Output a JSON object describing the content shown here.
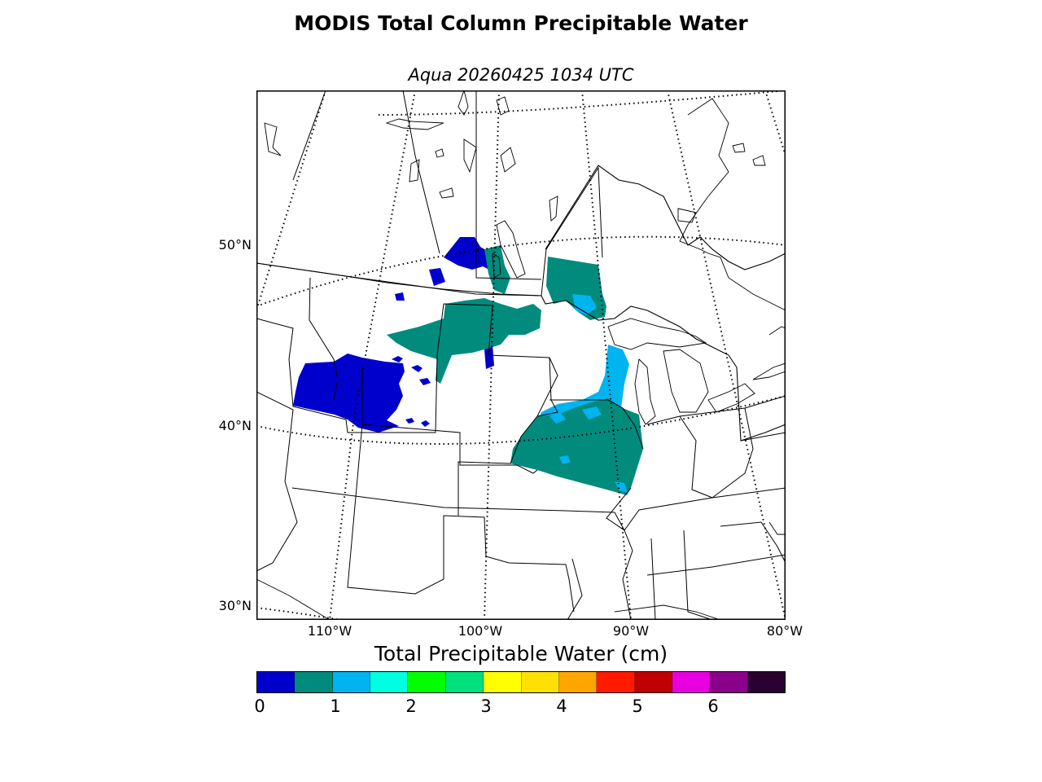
{
  "title": "MODIS Total Column Precipitable Water",
  "subtitle": "Aqua 20260425 1034 UTC",
  "map": {
    "lat_labels": [
      "50°N",
      "40°N",
      "30°N"
    ],
    "lon_labels": [
      "110°W",
      "100°W",
      "90°W",
      "80°W"
    ],
    "layers": [
      "coastlines",
      "country-borders",
      "state-province-borders",
      "lat-lon-graticule",
      "precipitable-water-field"
    ]
  },
  "colorbar": {
    "label": "Total Precipitable Water (cm)",
    "ticks": [
      "0",
      "1",
      "2",
      "3",
      "4",
      "5",
      "6"
    ],
    "colors": [
      "#0000cd",
      "#008b7d",
      "#00b4f0",
      "#00ffe0",
      "#00ff00",
      "#00e07d",
      "#ffff00",
      "#ffe000",
      "#ffa500",
      "#ff1a00",
      "#c00000",
      "#e800e0",
      "#8b008b",
      "#2a0030"
    ]
  }
}
